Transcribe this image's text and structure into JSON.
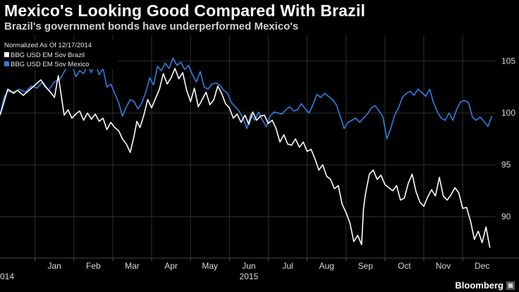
{
  "header": {
    "title": "Mexico's Looking Good Compared With Brazil",
    "subtitle": "Brazil's government bonds have underperformed Mexico's"
  },
  "brand": {
    "name": "Bloomberg",
    "icon": "bloomberg-terminal-icon"
  },
  "colors": {
    "background": "#000000",
    "brazil": "#ffffff",
    "mexico": "#2f7fe0",
    "grid": "#2f2f2f",
    "axis_text": "#d8d8d8"
  },
  "chart_data": {
    "type": "line",
    "title": "Mexico's Looking Good Compared With Brazil",
    "subtitle": "Brazil's government bonds have underperformed Mexico's",
    "legend": {
      "heading": "Normalized As Of 12/17/2014",
      "placement": "top-left"
    },
    "x_unit": "month index (0 = Jan 1 2015)",
    "xlim": [
      -0.9,
      11.85
    ],
    "ylim": [
      86,
      107.5
    ],
    "yticks": [
      90,
      95,
      100,
      105
    ],
    "x_ticks": [
      {
        "label": "Jan",
        "x": 0.5
      },
      {
        "label": "Feb",
        "x": 1.5
      },
      {
        "label": "Mar",
        "x": 2.5
      },
      {
        "label": "Apr",
        "x": 3.5
      },
      {
        "label": "May",
        "x": 4.5
      },
      {
        "label": "Jun",
        "x": 5.5
      },
      {
        "label": "Jul",
        "x": 6.5
      },
      {
        "label": "Aug",
        "x": 7.5
      },
      {
        "label": "Sep",
        "x": 8.5
      },
      {
        "label": "Oct",
        "x": 9.5
      },
      {
        "label": "Nov",
        "x": 10.5
      },
      {
        "label": "Dec",
        "x": 11.5
      }
    ],
    "year_labels": [
      {
        "label": "014",
        "x": -0.9
      },
      {
        "label": "2015",
        "x": 5.5
      }
    ],
    "grid": true,
    "series": [
      {
        "name": "BBG USD EM Sov Brazil",
        "color": "#ffffff",
        "x": [
          -0.9,
          -0.8,
          -0.7,
          -0.55,
          -0.45,
          -0.3,
          -0.15,
          0.0,
          0.15,
          0.25,
          0.4,
          0.5,
          0.6,
          0.75,
          0.85,
          0.95,
          1.05,
          1.15,
          1.25,
          1.35,
          1.45,
          1.55,
          1.65,
          1.75,
          1.85,
          1.95,
          2.05,
          2.15,
          2.25,
          2.35,
          2.45,
          2.55,
          2.62,
          2.7,
          2.8,
          2.9,
          3.0,
          3.1,
          3.2,
          3.3,
          3.4,
          3.5,
          3.6,
          3.7,
          3.8,
          3.9,
          4.0,
          4.1,
          4.2,
          4.3,
          4.4,
          4.5,
          4.6,
          4.7,
          4.8,
          4.9,
          5.0,
          5.1,
          5.2,
          5.3,
          5.4,
          5.5,
          5.6,
          5.7,
          5.8,
          5.9,
          6.0,
          6.1,
          6.2,
          6.3,
          6.4,
          6.5,
          6.6,
          6.7,
          6.8,
          6.9,
          7.0,
          7.1,
          7.2,
          7.3,
          7.4,
          7.5,
          7.6,
          7.7,
          7.8,
          7.9,
          8.0,
          8.1,
          8.2,
          8.3,
          8.4,
          8.45,
          8.5,
          8.6,
          8.7,
          8.8,
          8.9,
          9.0,
          9.1,
          9.2,
          9.3,
          9.4,
          9.5,
          9.6,
          9.7,
          9.8,
          9.9,
          10.0,
          10.1,
          10.2,
          10.3,
          10.4,
          10.5,
          10.6,
          10.7,
          10.8,
          10.9,
          11.0,
          11.1,
          11.2,
          11.3,
          11.4,
          11.5,
          11.6,
          11.7
        ],
        "values": [
          99.8,
          101.0,
          102.3,
          101.9,
          102.2,
          101.7,
          102.2,
          102.7,
          103.2,
          102.6,
          102.0,
          101.5,
          103.6,
          99.8,
          100.3,
          99.5,
          99.9,
          100.2,
          99.3,
          100.0,
          99.4,
          99.9,
          99.2,
          99.5,
          98.4,
          99.1,
          98.6,
          98.3,
          97.5,
          97.0,
          96.2,
          97.8,
          99.2,
          98.6,
          99.8,
          101.3,
          100.5,
          101.4,
          102.3,
          103.8,
          102.8,
          103.4,
          104.3,
          103.3,
          103.9,
          102.2,
          101.1,
          102.4,
          100.6,
          101.3,
          102.0,
          100.8,
          101.3,
          102.6,
          101.9,
          100.9,
          100.5,
          99.5,
          99.9,
          99.1,
          99.8,
          98.9,
          100.1,
          99.3,
          99.7,
          99.8,
          99.0,
          99.3,
          98.5,
          97.2,
          97.9,
          97.0,
          96.9,
          97.5,
          96.7,
          97.2,
          96.3,
          96.5,
          95.6,
          94.5,
          95.0,
          93.9,
          93.6,
          92.7,
          93.0,
          91.2,
          90.4,
          89.4,
          87.6,
          88.2,
          87.3,
          90.8,
          92.2,
          94.1,
          94.5,
          93.6,
          94.0,
          93.1,
          92.8,
          92.5,
          93.0,
          91.6,
          91.8,
          93.2,
          94.1,
          92.4,
          91.4,
          91.0,
          91.9,
          92.6,
          92.0,
          93.8,
          92.0,
          91.6,
          92.1,
          92.8,
          92.3,
          90.8,
          90.9,
          89.6,
          87.8,
          88.6,
          87.5,
          89.0,
          87.0
        ]
      },
      {
        "name": "BBG USD EM Sov Mexico",
        "color": "#2f7fe0",
        "x": [
          -0.9,
          -0.8,
          -0.7,
          -0.55,
          -0.4,
          -0.25,
          -0.1,
          0.05,
          0.2,
          0.35,
          0.5,
          0.65,
          0.8,
          0.95,
          1.05,
          1.15,
          1.25,
          1.35,
          1.45,
          1.55,
          1.65,
          1.75,
          1.85,
          1.95,
          2.05,
          2.15,
          2.25,
          2.35,
          2.45,
          2.55,
          2.65,
          2.75,
          2.85,
          2.95,
          3.05,
          3.15,
          3.25,
          3.35,
          3.45,
          3.55,
          3.65,
          3.75,
          3.85,
          3.95,
          4.05,
          4.15,
          4.25,
          4.35,
          4.45,
          4.55,
          4.65,
          4.75,
          4.85,
          4.95,
          5.05,
          5.15,
          5.25,
          5.35,
          5.45,
          5.55,
          5.65,
          5.75,
          5.85,
          5.95,
          6.05,
          6.15,
          6.25,
          6.35,
          6.45,
          6.55,
          6.65,
          6.75,
          6.85,
          6.95,
          7.05,
          7.15,
          7.25,
          7.35,
          7.45,
          7.55,
          7.65,
          7.75,
          7.85,
          7.95,
          8.05,
          8.15,
          8.25,
          8.35,
          8.45,
          8.55,
          8.65,
          8.75,
          8.85,
          8.95,
          9.05,
          9.15,
          9.25,
          9.35,
          9.45,
          9.55,
          9.65,
          9.75,
          9.85,
          9.95,
          10.05,
          10.15,
          10.25,
          10.35,
          10.45,
          10.55,
          10.65,
          10.75,
          10.85,
          10.95,
          11.05,
          11.15,
          11.25,
          11.35,
          11.45,
          11.55,
          11.65,
          11.75
        ],
        "values": [
          99.8,
          101.5,
          102.1,
          102.0,
          102.3,
          102.0,
          102.6,
          102.4,
          103.0,
          102.2,
          103.0,
          103.3,
          104.3,
          104.7,
          103.5,
          104.1,
          103.8,
          104.6,
          103.9,
          104.9,
          103.7,
          104.3,
          102.5,
          102.8,
          101.9,
          101.0,
          99.7,
          100.6,
          101.3,
          101.1,
          100.4,
          101.0,
          102.0,
          103.4,
          102.7,
          104.5,
          104.1,
          104.8,
          104.3,
          105.3,
          104.6,
          104.9,
          104.2,
          104.6,
          103.7,
          103.0,
          104.0,
          102.5,
          102.3,
          102.8,
          102.9,
          102.7,
          102.2,
          101.9,
          101.0,
          100.6,
          100.2,
          99.5,
          98.5,
          99.9,
          99.3,
          100.1,
          99.3,
          98.7,
          99.7,
          100.1,
          100.0,
          99.9,
          100.3,
          100.6,
          100.2,
          100.3,
          100.9,
          100.4,
          100.0,
          100.8,
          101.8,
          101.5,
          101.9,
          101.6,
          101.3,
          100.8,
          99.7,
          98.5,
          99.1,
          99.3,
          99.5,
          99.1,
          99.5,
          99.9,
          100.5,
          100.7,
          100.2,
          99.6,
          97.5,
          98.5,
          99.8,
          100.5,
          101.5,
          101.9,
          102.1,
          101.7,
          102.3,
          102.0,
          101.6,
          102.3,
          101.0,
          100.1,
          99.5,
          99.3,
          100.0,
          99.3,
          100.4,
          101.1,
          101.2,
          101.0,
          99.6,
          99.3,
          99.6,
          99.2,
          98.7,
          99.7
        ]
      }
    ]
  }
}
